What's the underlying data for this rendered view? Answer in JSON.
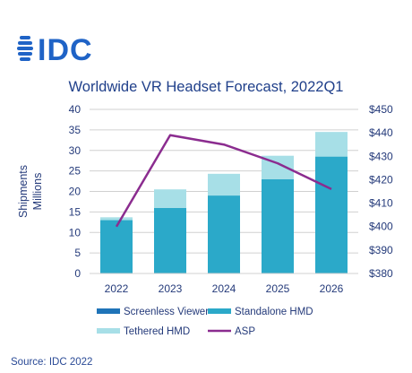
{
  "logo": {
    "text": "IDC",
    "color": "#1f63c6"
  },
  "title": "Worldwide VR Headset Forecast, 2022Q1",
  "source": "Source: IDC 2022",
  "colors": {
    "title": "#1f3f8a",
    "axis_text": "#243a7a",
    "grid": "#d0d0d0",
    "screenless": "#1f74b8",
    "standalone": "#2ba9c9",
    "tethered": "#a7dfe7",
    "asp": "#8b2c8f",
    "source_text": "#2a4a96"
  },
  "chart_data": {
    "type": "bar",
    "stacked": true,
    "categories": [
      "2022",
      "2023",
      "2024",
      "2025",
      "2026"
    ],
    "series": [
      {
        "name": "Screenless Viewer",
        "key": "screenless",
        "values": [
          0,
          0,
          0,
          0,
          0
        ]
      },
      {
        "name": "Standalone HMD",
        "key": "standalone",
        "values": [
          13,
          16,
          19,
          23,
          28.5
        ]
      },
      {
        "name": "Tethered HMD",
        "key": "tethered",
        "values": [
          0.7,
          4.5,
          5.3,
          5.7,
          6.0
        ]
      }
    ],
    "line_series": {
      "name": "ASP",
      "key": "asp",
      "axis": "right",
      "values": [
        400,
        439,
        435,
        427,
        416
      ]
    },
    "y_left": {
      "label_lines": [
        "Shipments",
        "Millions"
      ],
      "ticks": [
        0,
        5,
        10,
        15,
        20,
        25,
        30,
        35,
        40
      ],
      "range": [
        0,
        40
      ]
    },
    "y_right": {
      "ticks": [
        "$380",
        "$390",
        "$400",
        "$410",
        "$420",
        "$430",
        "$440",
        "$450"
      ],
      "range": [
        380,
        450
      ]
    },
    "legend": {
      "placement": "bottom",
      "items": [
        {
          "label": "Screenless Viewer",
          "key": "screenless",
          "kind": "bar"
        },
        {
          "label": "Standalone HMD",
          "key": "standalone",
          "kind": "bar"
        },
        {
          "label": "Tethered HMD",
          "key": "tethered",
          "kind": "bar"
        },
        {
          "label": "ASP",
          "key": "asp",
          "kind": "line"
        }
      ]
    },
    "grid": true
  }
}
